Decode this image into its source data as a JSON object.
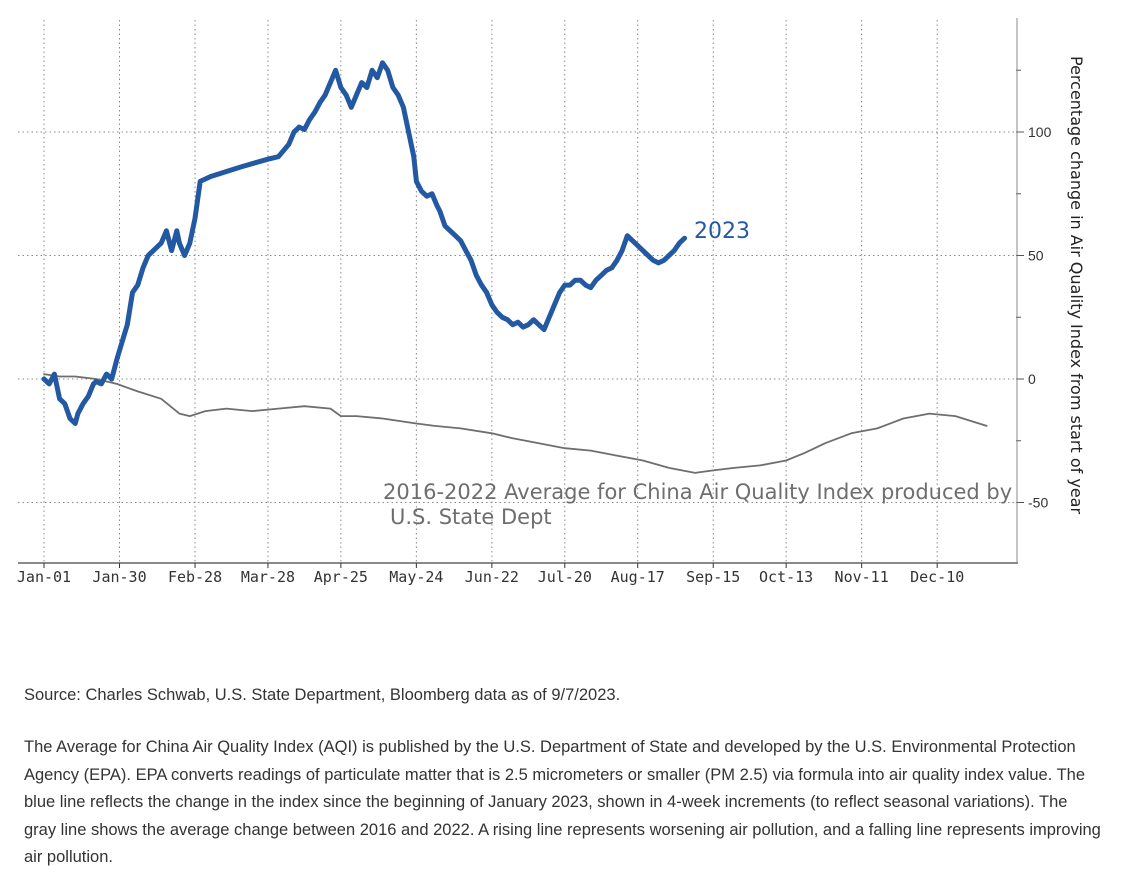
{
  "chart_data": {
    "type": "line",
    "xlabel": "",
    "ylabel": "Percentage change in Air Quality Index from start of year",
    "x_tick_labels": [
      "Jan-01",
      "Jan-30",
      "Feb-28",
      "Mar-28",
      "Apr-25",
      "May-24",
      "Jun-22",
      "Jul-20",
      "Aug-17",
      "Sep-15",
      "Oct-13",
      "Nov-11",
      "Dec-10"
    ],
    "x_tick_days": [
      0,
      29,
      58,
      86,
      114,
      143,
      172,
      200,
      228,
      257,
      285,
      314,
      343
    ],
    "xlim_days": [
      0,
      365
    ],
    "y_ticks": [
      -50,
      0,
      50,
      100
    ],
    "ylim": [
      -73,
      145
    ],
    "y_axis_side": "right",
    "grid": true,
    "series": [
      {
        "name": "2023",
        "color": "#2359a3",
        "x_days": [
          0,
          2,
          4,
          6,
          8,
          10,
          12,
          13,
          15,
          17,
          19,
          20,
          22,
          24,
          26,
          28,
          30,
          32,
          34,
          36,
          38,
          40,
          42,
          45,
          47,
          49,
          51,
          52,
          54,
          56,
          58,
          60,
          64,
          76,
          86,
          90,
          94,
          96,
          98,
          100,
          102,
          104,
          106,
          108,
          110,
          112,
          114,
          116,
          118,
          120,
          122,
          124,
          126,
          128,
          130,
          132,
          134,
          136,
          138,
          140,
          142,
          143,
          145,
          147,
          149,
          151,
          152,
          154,
          156,
          158,
          160,
          162,
          164,
          166,
          168,
          170,
          172,
          174,
          176,
          178,
          180,
          182,
          184,
          186,
          188,
          190,
          192,
          194,
          196,
          198,
          200,
          202,
          204,
          206,
          208,
          210,
          212,
          214,
          216,
          218,
          220,
          222,
          224,
          226,
          228,
          230,
          232,
          234,
          236,
          238,
          240,
          242,
          244,
          246
        ],
        "values": [
          0,
          -2,
          2,
          -8,
          -10,
          -16,
          -18,
          -14,
          -10,
          -7,
          -2,
          -1,
          -2,
          2,
          0,
          8,
          15,
          22,
          35,
          38,
          45,
          50,
          52,
          55,
          60,
          52,
          60,
          55,
          50,
          55,
          65,
          80,
          82,
          86,
          89,
          90,
          95,
          100,
          102,
          101,
          105,
          108,
          112,
          115,
          120,
          125,
          118,
          115,
          110,
          115,
          120,
          118,
          125,
          122,
          128,
          125,
          118,
          115,
          110,
          100,
          90,
          80,
          76,
          74,
          75,
          70,
          68,
          62,
          60,
          58,
          56,
          52,
          48,
          42,
          38,
          35,
          30,
          27,
          25,
          24,
          22,
          23,
          21,
          22,
          24,
          22,
          20,
          25,
          30,
          35,
          38,
          38,
          40,
          40,
          38,
          37,
          40,
          42,
          44,
          45,
          48,
          52,
          58,
          56,
          54,
          52,
          50,
          48,
          47,
          48,
          50,
          52,
          55,
          57
        ]
      },
      {
        "name": "2016-2022 Average for China Air Quality Index produced by U.S. State Dept",
        "color": "#6e6e6e",
        "x_days": [
          0,
          6,
          12,
          20,
          28,
          36,
          45,
          52,
          56,
          62,
          70,
          80,
          90,
          100,
          110,
          114,
          120,
          130,
          143,
          150,
          160,
          172,
          180,
          190,
          200,
          210,
          220,
          230,
          240,
          250,
          257,
          265,
          275,
          285,
          292,
          300,
          310,
          320,
          330,
          340,
          350,
          356,
          362
        ],
        "values": [
          2,
          1,
          1,
          0,
          -2,
          -5,
          -8,
          -14,
          -15,
          -13,
          -12,
          -13,
          -12,
          -11,
          -12,
          -15,
          -15,
          -16,
          -18,
          -19,
          -20,
          -22,
          -24,
          -26,
          -28,
          -29,
          -31,
          -33,
          -36,
          -38,
          -37,
          -36,
          -35,
          -33,
          -30,
          -26,
          -22,
          -20,
          -16,
          -14,
          -15,
          -17,
          -19
        ]
      }
    ]
  },
  "labels": {
    "series_2023": "2023",
    "average_line1": "2016-2022 Average for China Air Quality Index produced by",
    "average_line2": "U.S. State Dept"
  },
  "captions": {
    "source": "Source: Charles Schwab, U.S. State Department, Bloomberg data as of 9/7/2023.",
    "description": "The Average for China Air Quality Index (AQI) is published by the U.S. Department of State and developed by the U.S. Environmental Protection Agency (EPA). EPA converts readings of particulate matter that is 2.5 micrometers or smaller (PM 2.5) via formula into air quality index value. The blue line reflects the change in the index since the beginning of January 2023, shown in 4-week increments (to reflect seasonal variations). The gray line shows the average change between 2016 and 2022. A rising line represents worsening air pollution, and a falling line represents improving air pollution."
  }
}
